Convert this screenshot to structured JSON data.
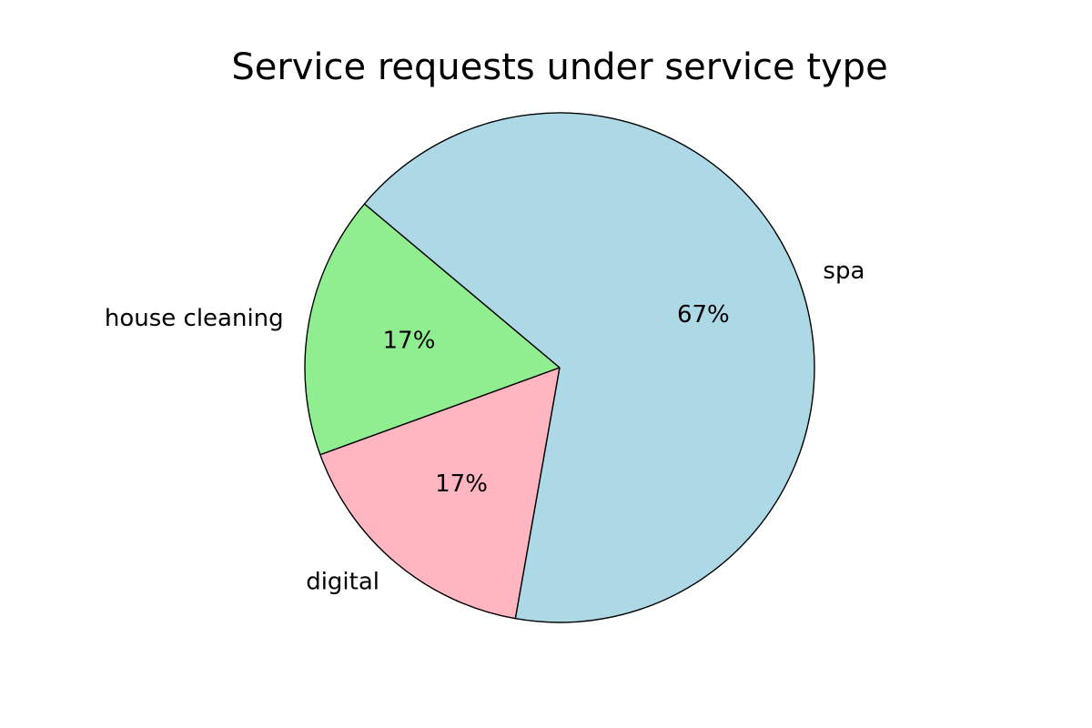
{
  "chart_data": {
    "type": "pie",
    "title": "Service requests under service type",
    "start_angle_deg": 140,
    "direction": "counterclockwise",
    "edge_color": "#000000",
    "slices": [
      {
        "label": "house cleaning",
        "value": 1,
        "percent_label": "17%",
        "color": "#90ee90"
      },
      {
        "label": "digital",
        "value": 1,
        "percent_label": "17%",
        "color": "#ffb6c1"
      },
      {
        "label": "spa",
        "value": 4,
        "percent_label": "67%",
        "color": "#add8e6"
      }
    ]
  }
}
